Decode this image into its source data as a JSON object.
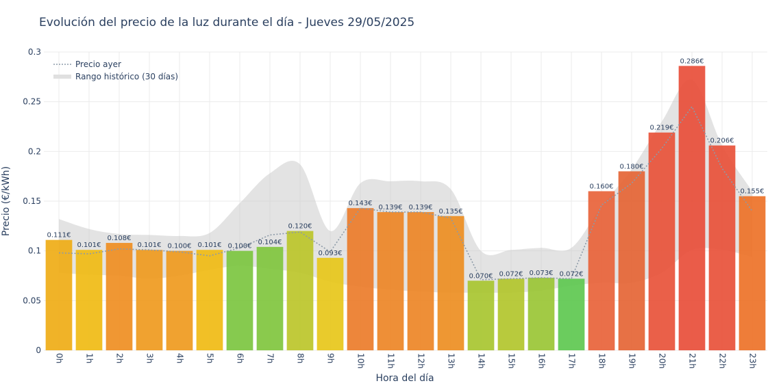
{
  "chart_data": {
    "type": "bar",
    "title": "Evolución del precio de la luz durante el día - Jueves 29/05/2025",
    "xlabel": "Hora del día",
    "ylabel": "Precio (€/kWh)",
    "ylim": [
      0,
      0.3
    ],
    "yticks": [
      "0",
      "0.05",
      "0.1",
      "0.15",
      "0.2",
      "0.25",
      "0.3"
    ],
    "categories": [
      "0h",
      "1h",
      "2h",
      "3h",
      "4h",
      "5h",
      "6h",
      "7h",
      "8h",
      "9h",
      "10h",
      "11h",
      "12h",
      "13h",
      "14h",
      "15h",
      "16h",
      "17h",
      "18h",
      "19h",
      "20h",
      "21h",
      "22h",
      "23h"
    ],
    "values": [
      0.111,
      0.101,
      0.108,
      0.101,
      0.1,
      0.101,
      0.1,
      0.104,
      0.12,
      0.093,
      0.143,
      0.139,
      0.139,
      0.135,
      0.07,
      0.072,
      0.073,
      0.072,
      0.16,
      0.18,
      0.219,
      0.286,
      0.206,
      0.155
    ],
    "value_labels": [
      "0.111€",
      "0.101€",
      "0.108€",
      "0.101€",
      "0.100€",
      "0.101€",
      "0.100€",
      "0.104€",
      "0.120€",
      "0.093€",
      "0.143€",
      "0.139€",
      "0.139€",
      "0.135€",
      "0.070€",
      "0.072€",
      "0.073€",
      "0.072€",
      "0.160€",
      "0.180€",
      "0.219€",
      "0.286€",
      "0.206€",
      "0.155€"
    ],
    "bar_colors": [
      "#efad16",
      "#f0bb14",
      "#ef8e22",
      "#ef9a1e",
      "#ef9a1e",
      "#f0bb14",
      "#7cc540",
      "#80c63e",
      "#bcc52a",
      "#e7c71a",
      "#ec7c2a",
      "#ed8526",
      "#ed8526",
      "#ed8e22",
      "#a8c530",
      "#b2c52c",
      "#9ac535",
      "#5ec850",
      "#e8633a",
      "#e56535",
      "#e8533a",
      "#e84e3a",
      "#e8513a",
      "#ed7228"
    ],
    "series": [
      {
        "name": "Precio ayer",
        "style": "dotted-line",
        "color": "#8c9aa8",
        "values": [
          0.098,
          0.097,
          0.102,
          0.101,
          0.099,
          0.095,
          0.103,
          0.116,
          0.119,
          0.099,
          0.143,
          0.139,
          0.139,
          0.133,
          0.071,
          0.072,
          0.073,
          0.072,
          0.146,
          0.168,
          0.203,
          0.245,
          0.183,
          0.14
        ]
      },
      {
        "name": "Rango histórico (30 días)",
        "style": "band",
        "color": "#d8d8d8",
        "upper": [
          0.132,
          0.122,
          0.117,
          0.116,
          0.115,
          0.118,
          0.148,
          0.178,
          0.187,
          0.12,
          0.168,
          0.17,
          0.17,
          0.162,
          0.1,
          0.101,
          0.103,
          0.103,
          0.145,
          0.182,
          0.23,
          0.272,
          0.206,
          0.16
        ],
        "lower": [
          0.078,
          0.076,
          0.075,
          0.072,
          0.075,
          0.081,
          0.085,
          0.082,
          0.078,
          0.069,
          0.064,
          0.061,
          0.059,
          0.058,
          0.058,
          0.058,
          0.06,
          0.065,
          0.068,
          0.068,
          0.078,
          0.101,
          0.101,
          0.094
        ]
      }
    ],
    "legend_position": "top-left",
    "grid": true
  }
}
